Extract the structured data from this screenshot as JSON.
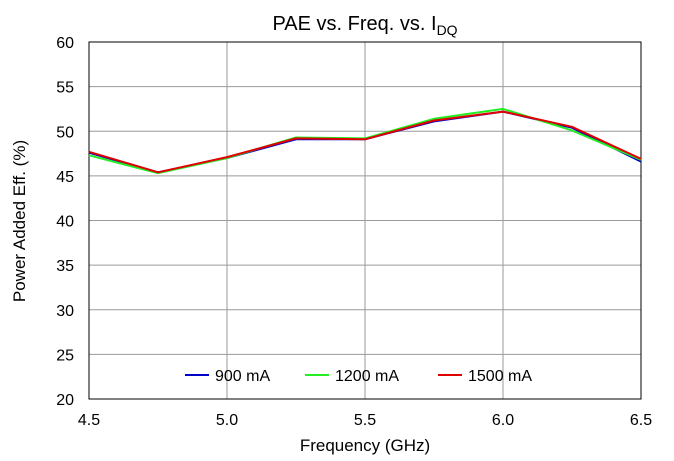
{
  "chart_data": {
    "type": "line",
    "title_main": "PAE vs. Freq. vs. I",
    "title_sub": "DQ",
    "xlabel": "Frequency (GHz)",
    "ylabel": "Power Added Eff. (%)",
    "xlim": [
      4.5,
      6.5
    ],
    "ylim": [
      20,
      60
    ],
    "xticks": [
      4.5,
      5.0,
      5.5,
      6.0,
      6.5
    ],
    "xtick_labels": [
      "4.5",
      "5.0",
      "5.5",
      "6.0",
      "6.5"
    ],
    "yticks": [
      20,
      25,
      30,
      35,
      40,
      45,
      50,
      55,
      60
    ],
    "ytick_labels": [
      "20",
      "25",
      "30",
      "35",
      "40",
      "45",
      "50",
      "55",
      "60"
    ],
    "grid": true,
    "legend_position": "bottom-center",
    "x": [
      4.5,
      4.75,
      5.0,
      5.25,
      5.5,
      5.75,
      6.0,
      6.25,
      6.5
    ],
    "series": [
      {
        "name": "900 mA",
        "color": "#0000c8",
        "values": [
          47.6,
          45.4,
          47.0,
          49.1,
          49.1,
          51.1,
          52.2,
          50.4,
          46.6
        ]
      },
      {
        "name": "1200 mA",
        "color": "#22ee22",
        "values": [
          47.3,
          45.3,
          47.0,
          49.3,
          49.2,
          51.4,
          52.5,
          50.1,
          46.8
        ]
      },
      {
        "name": "1500 mA",
        "color": "#e00000",
        "values": [
          47.7,
          45.4,
          47.1,
          49.2,
          49.1,
          51.2,
          52.2,
          50.5,
          46.9
        ]
      }
    ]
  }
}
